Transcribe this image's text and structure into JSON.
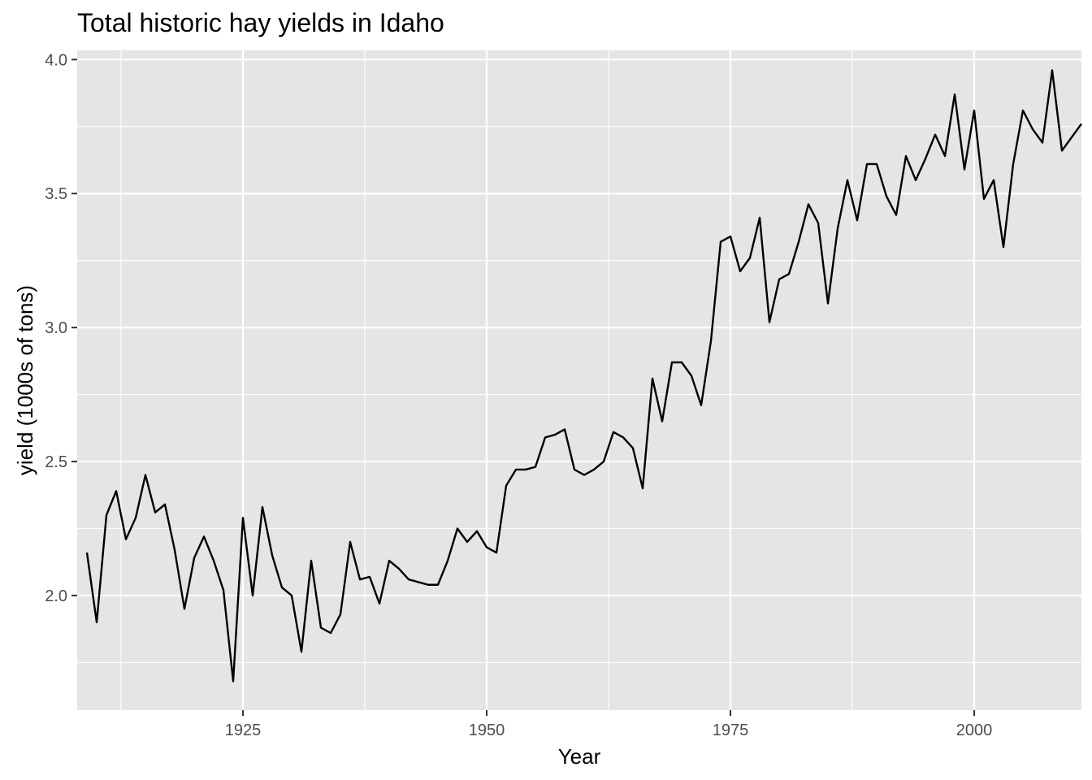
{
  "chart_data": {
    "type": "line",
    "title": "Total historic hay yields in Idaho",
    "xlabel": "Year",
    "ylabel": "yield (1000s of tons)",
    "xlim": [
      1908,
      2011
    ],
    "ylim": [
      1.68,
      3.96
    ],
    "x_ticks": [
      1925,
      1950,
      1975,
      2000
    ],
    "x_tick_labels": [
      "1925",
      "1950",
      "1975",
      "2000"
    ],
    "y_ticks": [
      2.0,
      2.5,
      3.0,
      3.5,
      4.0
    ],
    "y_tick_labels": [
      "2.0",
      "2.5",
      "3.0",
      "3.5",
      "4.0"
    ],
    "grid": true,
    "background": "#e5e5e5",
    "grid_color": "#ffffff",
    "line_color": "#000000",
    "series": [
      {
        "x": [
          1909,
          1910,
          1911,
          1912,
          1913,
          1914,
          1915,
          1916,
          1917,
          1918,
          1919,
          1920,
          1921,
          1922,
          1923,
          1924,
          1925,
          1926,
          1927,
          1928,
          1929,
          1930,
          1931,
          1932,
          1933,
          1934,
          1935,
          1936,
          1937,
          1938,
          1939,
          1940,
          1941,
          1942,
          1943,
          1944,
          1945,
          1946,
          1947,
          1948,
          1949,
          1950,
          1951,
          1952,
          1953,
          1954,
          1955,
          1956,
          1957,
          1958,
          1959,
          1960,
          1961,
          1962,
          1963,
          1964,
          1965,
          1966,
          1967,
          1968,
          1969,
          1970,
          1971,
          1972,
          1973,
          1974,
          1975,
          1976,
          1977,
          1978,
          1979,
          1980,
          1981,
          1982,
          1983,
          1984,
          1985,
          1986,
          1987,
          1988,
          1989,
          1990,
          1991,
          1992,
          1993,
          1994,
          1995,
          1996,
          1997,
          1998,
          1999,
          2000,
          2001,
          2002,
          2003,
          2004,
          2005,
          2006,
          2007,
          2008,
          2009,
          2010,
          2011
        ],
        "values": [
          2.16,
          1.9,
          2.3,
          2.39,
          2.21,
          2.29,
          2.45,
          2.31,
          2.34,
          2.17,
          1.95,
          2.14,
          2.22,
          2.13,
          2.02,
          1.68,
          2.29,
          2.0,
          2.33,
          2.15,
          2.03,
          2.0,
          1.79,
          2.13,
          1.88,
          1.86,
          1.93,
          2.2,
          2.06,
          2.07,
          1.97,
          2.13,
          2.1,
          2.06,
          2.05,
          2.04,
          2.04,
          2.13,
          2.25,
          2.2,
          2.24,
          2.18,
          2.16,
          2.41,
          2.47,
          2.47,
          2.48,
          2.59,
          2.6,
          2.62,
          2.47,
          2.45,
          2.47,
          2.5,
          2.61,
          2.59,
          2.55,
          2.4,
          2.81,
          2.65,
          2.87,
          2.87,
          2.82,
          2.71,
          2.95,
          3.32,
          3.34,
          3.21,
          3.26,
          3.41,
          3.02,
          3.18,
          3.2,
          3.32,
          3.46,
          3.39,
          3.09,
          3.37,
          3.55,
          3.4,
          3.61,
          3.61,
          3.49,
          3.42,
          3.64,
          3.55,
          3.63,
          3.72,
          3.64,
          3.87,
          3.59,
          3.81,
          3.48,
          3.55,
          3.3,
          3.61,
          3.81,
          3.74,
          3.69,
          3.96,
          3.66,
          3.71,
          3.76
        ]
      }
    ]
  }
}
